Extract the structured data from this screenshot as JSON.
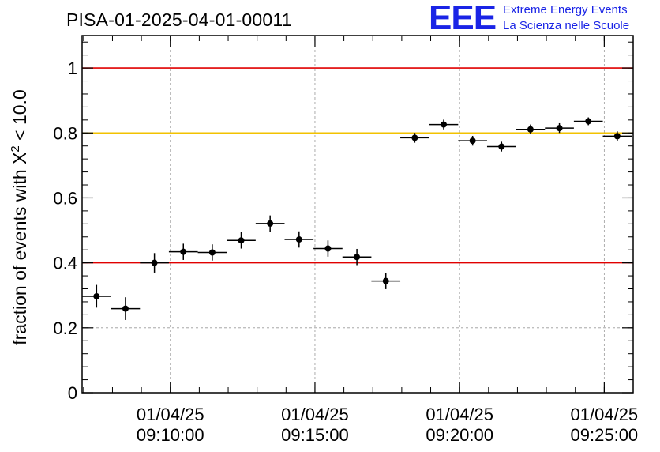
{
  "header": {
    "title": "PISA-01-2025-04-01-00011",
    "logo_text": "EEE",
    "logo_line1": "Extreme Energy Events",
    "logo_line2": "La Scienza nelle Scuole"
  },
  "chart_data": {
    "type": "scatter",
    "title": "PISA-01-2025-04-01-00011",
    "xlabel": "",
    "ylabel_main": "fraction of events with X",
    "ylabel_sup": "2",
    "ylabel_tail": " < 10.0",
    "x_axis": {
      "type": "time",
      "range": [
        "2025-04-01 09:06:57",
        "2025-04-01 09:26:00"
      ],
      "tick_labels": [
        {
          "t": "2025-04-01 09:10:00",
          "date": "01/04/25",
          "time": "09:10:00"
        },
        {
          "t": "2025-04-01 09:15:00",
          "date": "01/04/25",
          "time": "09:15:00"
        },
        {
          "t": "2025-04-01 09:20:00",
          "date": "01/04/25",
          "time": "09:20:00"
        },
        {
          "t": "2025-04-01 09:25:00",
          "date": "01/04/25",
          "time": "09:25:00"
        }
      ]
    },
    "y_axis": {
      "range": [
        0,
        1.1
      ],
      "ticks": [
        0,
        0.2,
        0.4,
        0.6,
        0.8,
        1
      ],
      "tick_labels": [
        "0",
        "0.2",
        "0.4",
        "0.6",
        "0.8",
        "1"
      ]
    },
    "grid": true,
    "reference_lines": [
      {
        "y": 1.0,
        "color": "#e00000"
      },
      {
        "y": 0.8,
        "color": "#f2c200"
      },
      {
        "y": 0.4,
        "color": "#e00000"
      }
    ],
    "series": [
      {
        "marker_color": "#000000",
        "x_error_seconds": 30,
        "points": [
          {
            "x": "2025-04-01 09:07:27",
            "y": 0.297,
            "err": 0.035
          },
          {
            "x": "2025-04-01 09:08:27",
            "y": 0.259,
            "err": 0.035
          },
          {
            "x": "2025-04-01 09:09:27",
            "y": 0.4,
            "err": 0.03
          },
          {
            "x": "2025-04-01 09:10:27",
            "y": 0.434,
            "err": 0.025
          },
          {
            "x": "2025-04-01 09:11:27",
            "y": 0.432,
            "err": 0.025
          },
          {
            "x": "2025-04-01 09:12:27",
            "y": 0.469,
            "err": 0.025
          },
          {
            "x": "2025-04-01 09:13:27",
            "y": 0.521,
            "err": 0.025
          },
          {
            "x": "2025-04-01 09:14:27",
            "y": 0.472,
            "err": 0.025
          },
          {
            "x": "2025-04-01 09:15:27",
            "y": 0.444,
            "err": 0.025
          },
          {
            "x": "2025-04-01 09:16:27",
            "y": 0.418,
            "err": 0.025
          },
          {
            "x": "2025-04-01 09:17:27",
            "y": 0.344,
            "err": 0.025
          },
          {
            "x": "2025-04-01 09:18:27",
            "y": 0.785,
            "err": 0.015
          },
          {
            "x": "2025-04-01 09:19:27",
            "y": 0.826,
            "err": 0.015
          },
          {
            "x": "2025-04-01 09:20:27",
            "y": 0.776,
            "err": 0.015
          },
          {
            "x": "2025-04-01 09:21:27",
            "y": 0.758,
            "err": 0.015
          },
          {
            "x": "2025-04-01 09:22:27",
            "y": 0.811,
            "err": 0.015
          },
          {
            "x": "2025-04-01 09:23:27",
            "y": 0.815,
            "err": 0.015
          },
          {
            "x": "2025-04-01 09:24:27",
            "y": 0.836,
            "err": 0.012
          },
          {
            "x": "2025-04-01 09:25:27",
            "y": 0.79,
            "err": 0.015
          }
        ]
      }
    ]
  }
}
